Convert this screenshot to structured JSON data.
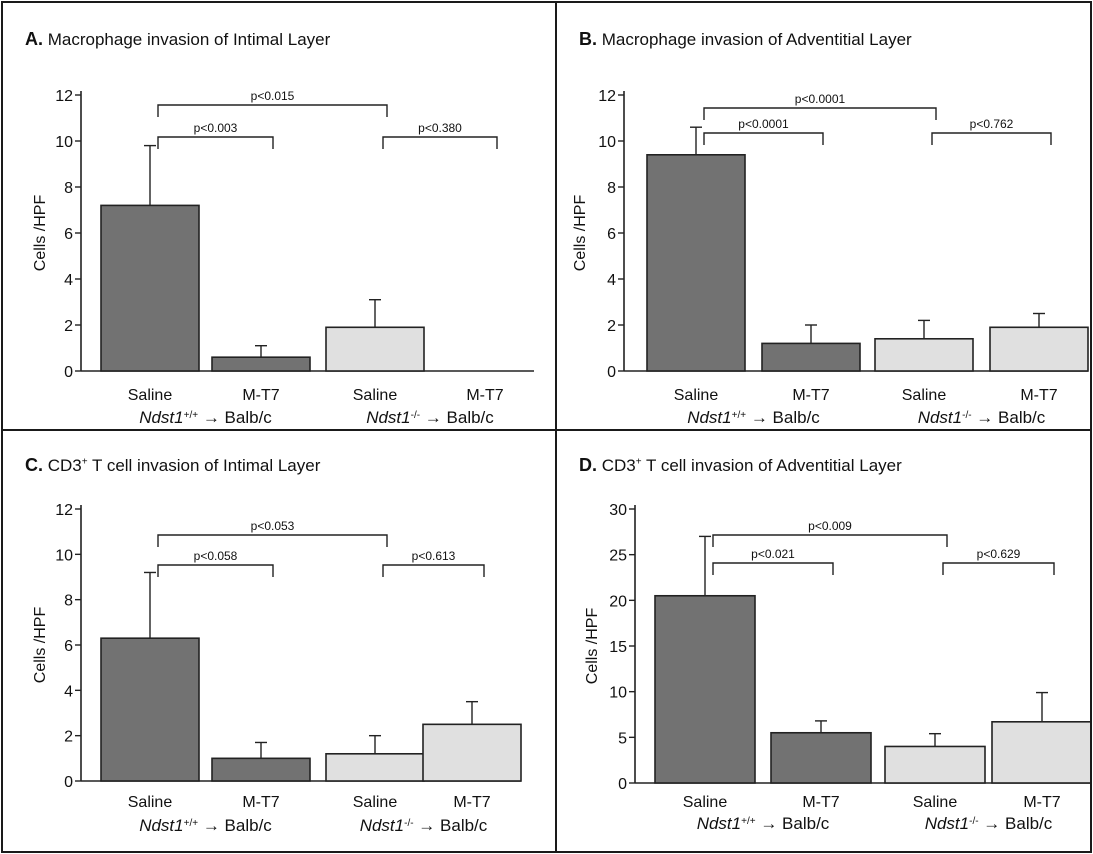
{
  "colors": {
    "dark_bar": "#727272",
    "light_bar": "#e0e0e0",
    "outline": "#222222"
  },
  "group_labels": {
    "wt_gene": "Ndst1",
    "wt_sup": "+/+",
    "ko_gene": "Ndst1",
    "ko_sup": "-/-",
    "arrow": "→",
    "recipient": "Balb/c"
  },
  "chart_data": [
    {
      "type": "bar",
      "panel": "A.",
      "title": "Macrophage invasion of Intimal Layer",
      "title_sup": "",
      "ylabel": "Cells /HPF",
      "xlabel": "",
      "ylim": [
        0,
        12
      ],
      "yticks": [
        "0",
        "2",
        "4",
        "6",
        "8",
        "10",
        "12"
      ],
      "categories": [
        "Saline",
        "M-T7",
        "Saline",
        "M-T7"
      ],
      "values": [
        7.2,
        0.6,
        1.9,
        0
      ],
      "errors": [
        2.6,
        0.5,
        1.2,
        0
      ],
      "bar_colors": [
        "dark",
        "dark",
        "light",
        "light"
      ],
      "comparisons": [
        {
          "from": 0,
          "to": 1,
          "label": "p<0.003"
        },
        {
          "from": 0,
          "to": 2,
          "label": "p<0.015"
        },
        {
          "from": 2,
          "to": 3,
          "label": "p<0.380"
        }
      ]
    },
    {
      "type": "bar",
      "panel": "B.",
      "title": "Macrophage invasion of Adventitial Layer",
      "title_sup": "",
      "ylabel": "Cells /HPF",
      "xlabel": "",
      "ylim": [
        0,
        12
      ],
      "yticks": [
        "0",
        "2",
        "4",
        "6",
        "8",
        "10",
        "12"
      ],
      "categories": [
        "Saline",
        "M-T7",
        "Saline",
        "M-T7"
      ],
      "values": [
        9.4,
        1.2,
        1.4,
        1.9
      ],
      "errors": [
        1.2,
        0.8,
        0.8,
        0.6
      ],
      "bar_colors": [
        "dark",
        "dark",
        "light",
        "light"
      ],
      "comparisons": [
        {
          "from": 0,
          "to": 1,
          "label": "p<0.0001"
        },
        {
          "from": 0,
          "to": 2,
          "label": "p<0.0001"
        },
        {
          "from": 2,
          "to": 3,
          "label": "p<0.762"
        }
      ]
    },
    {
      "type": "bar",
      "panel": "C.",
      "title": "T cell invasion of Intimal  Layer",
      "title_prefix": "CD3",
      "title_sup": "+",
      "ylabel": "Cells /HPF",
      "xlabel": "",
      "ylim": [
        0,
        12
      ],
      "yticks": [
        "0",
        "2",
        "4",
        "6",
        "8",
        "10",
        "12"
      ],
      "categories": [
        "Saline",
        "M-T7",
        "Saline",
        "M-T7"
      ],
      "values": [
        6.3,
        1.0,
        1.2,
        2.5
      ],
      "errors": [
        2.9,
        0.7,
        0.8,
        1.0
      ],
      "bar_colors": [
        "dark",
        "dark",
        "light",
        "light"
      ],
      "comparisons": [
        {
          "from": 0,
          "to": 1,
          "label": "p<0.058"
        },
        {
          "from": 0,
          "to": 2,
          "label": "p<0.053"
        },
        {
          "from": 2,
          "to": 3,
          "label": "p<0.613"
        }
      ]
    },
    {
      "type": "bar",
      "panel": "D.",
      "title": "T cell invasion of Adventitial Layer",
      "title_prefix": "CD3",
      "title_sup": "+",
      "ylabel": "Cells /HPF",
      "xlabel": "",
      "ylim": [
        0,
        30
      ],
      "yticks": [
        "0",
        "5",
        "10",
        "15",
        "20",
        "25",
        "30"
      ],
      "categories": [
        "Saline",
        "M-T7",
        "Saline",
        "M-T7"
      ],
      "values": [
        20.5,
        5.5,
        4.0,
        6.7
      ],
      "errors": [
        6.5,
        1.3,
        1.4,
        3.2
      ],
      "bar_colors": [
        "dark",
        "dark",
        "light",
        "light"
      ],
      "comparisons": [
        {
          "from": 0,
          "to": 1,
          "label": "p<0.021"
        },
        {
          "from": 0,
          "to": 2,
          "label": "p<0.009"
        },
        {
          "from": 2,
          "to": 3,
          "label": "p<0.629"
        }
      ]
    }
  ]
}
